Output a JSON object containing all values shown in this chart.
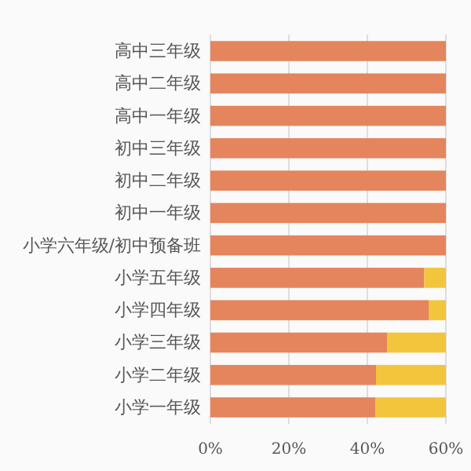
{
  "chart_data": {
    "type": "bar",
    "orientation": "horizontal",
    "stacked": true,
    "categories": [
      "高中三年级",
      "高中二年级",
      "高中一年级",
      "初中三年级",
      "初中二年级",
      "初中一年级",
      "小学六年级/初中预备班",
      "小学五年级",
      "小学四年级",
      "小学三年级",
      "小学二年级",
      "小学一年级"
    ],
    "series": [
      {
        "color": "#e4855e",
        "values": [
          60,
          60,
          60,
          60,
          60,
          60,
          60,
          54.5,
          55.6,
          45.1,
          42.2,
          42.0
        ]
      },
      {
        "color": "#f2c53d",
        "values": [
          0,
          0,
          0,
          0,
          0,
          0,
          0,
          5.5,
          4.4,
          14.9,
          17.8,
          18.0
        ]
      }
    ],
    "xlim": [
      0,
      60
    ],
    "xticks": [
      {
        "value": 0,
        "label": "0%"
      },
      {
        "value": 20,
        "label": "20%"
      },
      {
        "value": 40,
        "label": "40%"
      },
      {
        "value": 60,
        "label": "60%"
      }
    ],
    "grid": "x"
  }
}
